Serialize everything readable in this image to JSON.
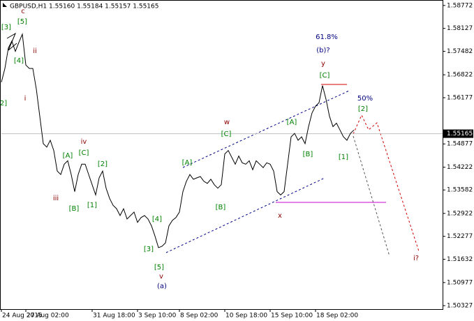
{
  "chart_data": {
    "type": "line",
    "title": "GBPUSD,H1  1.55160 1.55184 1.55157 1.55165",
    "series": [
      {
        "name": "GBPUSD",
        "color": "#000000",
        "values": [
          1.56616,
          1.57001,
          1.57579,
          1.57771,
          1.57482,
          1.57733,
          1.57964,
          1.57097,
          1.57001,
          1.57001,
          1.56424,
          1.55654,
          1.54884,
          1.54787,
          1.5498,
          1.54691,
          1.54114,
          1.54017,
          1.54306,
          1.54402,
          1.54017,
          1.53536,
          1.54017,
          1.54306,
          1.54306,
          1.54017,
          1.53729,
          1.5344,
          1.53921,
          1.54114,
          1.53632,
          1.53344,
          1.53151,
          1.53055,
          1.52862,
          1.53055,
          1.52766,
          1.52862,
          1.52959,
          1.5267,
          1.52805,
          1.52862,
          1.52766,
          1.52574,
          1.52285,
          1.51958,
          1.51996,
          1.52092,
          1.52574,
          1.52728,
          1.52805,
          1.52959,
          1.53536,
          1.53825,
          1.54017,
          1.53883,
          1.53921,
          1.5396,
          1.53825,
          1.53767,
          1.53883,
          1.53729,
          1.53632,
          1.53729,
          1.54595,
          1.54691,
          1.54499,
          1.54306,
          1.54537,
          1.54345,
          1.54306,
          1.54402,
          1.54152,
          1.54402,
          1.54306,
          1.5421,
          1.54345,
          1.54306,
          1.54114,
          1.53536,
          1.5344,
          1.53536,
          1.54306,
          1.55076,
          1.55172,
          1.5498,
          1.55076,
          1.54884,
          1.55365,
          1.5575,
          1.55942,
          1.56039,
          1.5652,
          1.56135,
          1.55654,
          1.55365,
          1.55461,
          1.55269,
          1.55076,
          1.5498,
          1.55172,
          1.55269
        ]
      }
    ],
    "xlim": [
      0,
      126.4
    ],
    "xticks": [
      {
        "value": 0,
        "label": "24 Aug 2015"
      },
      {
        "value": 7,
        "label": "27 Aug 02:00"
      },
      {
        "value": 26,
        "label": "31 Aug 18:00"
      },
      {
        "value": 39,
        "label": "3 Sep 10:00"
      },
      {
        "value": 51,
        "label": "8 Sep 02:00"
      },
      {
        "value": 64,
        "label": "10 Sep 18:00"
      },
      {
        "value": 77,
        "label": "15 Sep 10:00"
      },
      {
        "value": 90,
        "label": "18 Sep 02:00"
      }
    ],
    "ylim": [
      1.50229,
      1.58926
    ],
    "yticks": [
      1.58772,
      1.58127,
      1.57482,
      1.56822,
      1.56177,
      1.54877,
      1.54222,
      1.53582,
      1.52922,
      1.52277,
      1.51632,
      1.50977,
      1.50327
    ],
    "current_price": 1.55165,
    "annotations": [
      {
        "text": "c",
        "color": "#8b0000"
      },
      {
        "text": "[5]",
        "color": "#008000"
      },
      {
        "text": "[3]",
        "color": "#008000"
      },
      {
        "text": "[4]",
        "color": "#008000"
      },
      {
        "text": "ii",
        "color": "#8b0000"
      },
      {
        "text": "i",
        "color": "#8b0000"
      },
      {
        "text": "2]",
        "color": "#008000"
      },
      {
        "text": "iv",
        "color": "#8b0000"
      },
      {
        "text": "[A]",
        "color": "#008000"
      },
      {
        "text": "[C]",
        "color": "#008000"
      },
      {
        "text": "[2]",
        "color": "#008000"
      },
      {
        "text": "iii",
        "color": "#8b0000"
      },
      {
        "text": "[B]",
        "color": "#008000"
      },
      {
        "text": "[1]",
        "color": "#008000"
      },
      {
        "text": "[4]",
        "color": "#008000"
      },
      {
        "text": "[3]",
        "color": "#008000"
      },
      {
        "text": "[5]",
        "color": "#008000"
      },
      {
        "text": "v",
        "color": "#8b0000"
      },
      {
        "text": "(a)",
        "color": "#000080"
      },
      {
        "text": "w",
        "color": "#8b0000"
      },
      {
        "text": "[C]",
        "color": "#008000"
      },
      {
        "text": "[A]",
        "color": "#008000"
      },
      {
        "text": "[B]",
        "color": "#008000"
      },
      {
        "text": "x",
        "color": "#8b0000"
      },
      {
        "text": "[A]",
        "color": "#008000"
      },
      {
        "text": "[B]",
        "color": "#008000"
      },
      {
        "text": "61.8%",
        "color": "#000080"
      },
      {
        "text": "(b)?",
        "color": "#000080"
      },
      {
        "text": "y",
        "color": "#8b0000"
      },
      {
        "text": "[C]",
        "color": "#008000"
      },
      {
        "text": "50%",
        "color": "#000080"
      },
      {
        "text": "[2]",
        "color": "#008000"
      },
      {
        "text": "[1]",
        "color": "#008000"
      },
      {
        "text": "i?",
        "color": "#8b0000"
      }
    ]
  }
}
